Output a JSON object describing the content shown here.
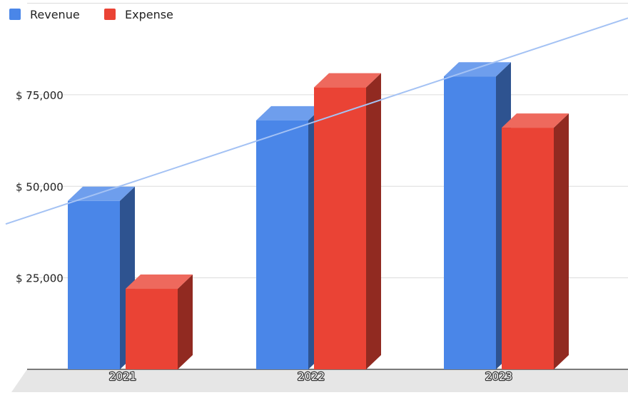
{
  "chart_data": {
    "type": "bar",
    "style": "3d-column",
    "categories": [
      "2021",
      "2022",
      "2023"
    ],
    "series": [
      {
        "name": "Revenue",
        "values": [
          46000,
          68000,
          80000
        ],
        "color": "#4a86e8"
      },
      {
        "name": "Expense",
        "values": [
          22000,
          77000,
          66000
        ],
        "color": "#ea4335"
      }
    ],
    "trendline": {
      "series": "Revenue",
      "color": "#a4c2f4"
    },
    "ylim": [
      0,
      100000
    ],
    "yticks": [
      25000,
      50000,
      75000
    ],
    "ytick_labels": [
      "$ 25,000",
      "$ 50,000",
      "$ 75,000"
    ],
    "legend": "top-left",
    "grid": true
  }
}
